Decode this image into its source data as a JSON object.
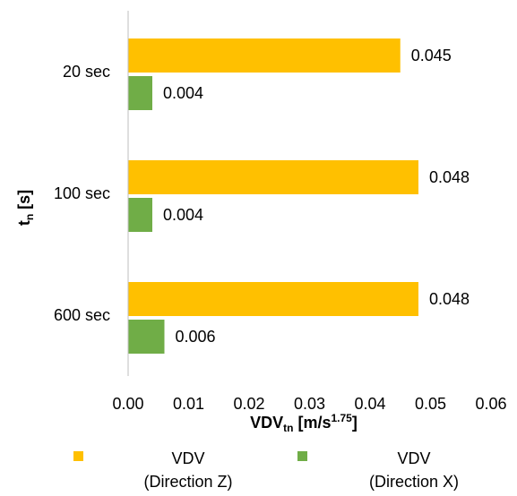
{
  "chart_data": {
    "type": "bar",
    "orientation": "horizontal",
    "categories": [
      "20 sec",
      "100 sec",
      "600 sec"
    ],
    "series": [
      {
        "name": "VDV (Direction Z)",
        "name_lines": [
          "VDV",
          "(Direction Z)"
        ],
        "color": "#FFC000",
        "values": [
          0.045,
          0.048,
          0.048
        ],
        "labels": [
          "0.045",
          "0.048",
          "0.048"
        ]
      },
      {
        "name": "VDV (Direction X)",
        "name_lines": [
          "VDV",
          "(Direction X)"
        ],
        "color": "#70AD47",
        "values": [
          0.004,
          0.004,
          0.006
        ],
        "labels": [
          "0.004",
          "0.004",
          "0.006"
        ]
      }
    ],
    "xlim": [
      0,
      0.06
    ],
    "xticks": [
      "0.00",
      "0.01",
      "0.02",
      "0.03",
      "0.04",
      "0.05",
      "0.06"
    ],
    "xlabel": {
      "main": "VDV",
      "sub": "tn",
      "unit": " [m/s",
      "sup": "1.75",
      "end": "]"
    },
    "ylabel": {
      "main": "t",
      "sub": "n",
      "end": " [s]"
    },
    "grid": false,
    "legend": "bottom"
  }
}
